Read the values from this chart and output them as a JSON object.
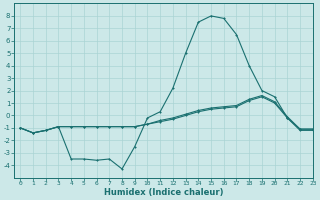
{
  "x": [
    0,
    1,
    2,
    3,
    4,
    5,
    6,
    7,
    8,
    9,
    10,
    11,
    12,
    13,
    14,
    15,
    16,
    17,
    18,
    19,
    20,
    21,
    22,
    23
  ],
  "line1": [
    -1.0,
    -1.4,
    -1.2,
    -0.9,
    -3.5,
    -3.5,
    -3.6,
    -3.5,
    -4.3,
    -2.5,
    -0.2,
    0.3,
    2.2,
    5.0,
    7.5,
    8.0,
    7.8,
    6.5,
    4.0,
    2.0,
    1.5,
    -0.2,
    -1.2,
    -1.2
  ],
  "line2": [
    -1.0,
    -1.4,
    -1.2,
    -0.9,
    -0.9,
    -0.9,
    -0.9,
    -0.9,
    -0.9,
    -0.9,
    -0.7,
    -0.5,
    -0.3,
    0.0,
    0.3,
    0.5,
    0.6,
    0.7,
    1.2,
    1.5,
    1.0,
    -0.2,
    -1.1,
    -1.1
  ],
  "line3": [
    -1.0,
    -1.4,
    -1.2,
    -0.9,
    -0.9,
    -0.9,
    -0.9,
    -0.9,
    -0.9,
    -0.9,
    -0.7,
    -0.4,
    -0.2,
    0.1,
    0.4,
    0.6,
    0.7,
    0.8,
    1.3,
    1.6,
    1.1,
    -0.1,
    -1.1,
    -1.1
  ],
  "bg_color": "#cce8e8",
  "grid_color": "#aad4d4",
  "line_color": "#1a7070",
  "xlabel": "Humidex (Indice chaleur)",
  "ylim": [
    -5,
    9
  ],
  "xlim": [
    -0.5,
    23
  ],
  "yticks": [
    -4,
    -3,
    -2,
    -1,
    0,
    1,
    2,
    3,
    4,
    5,
    6,
    7,
    8
  ],
  "xticks": [
    0,
    1,
    2,
    3,
    4,
    5,
    6,
    7,
    8,
    9,
    10,
    11,
    12,
    13,
    14,
    15,
    16,
    17,
    18,
    19,
    20,
    21,
    22,
    23
  ]
}
